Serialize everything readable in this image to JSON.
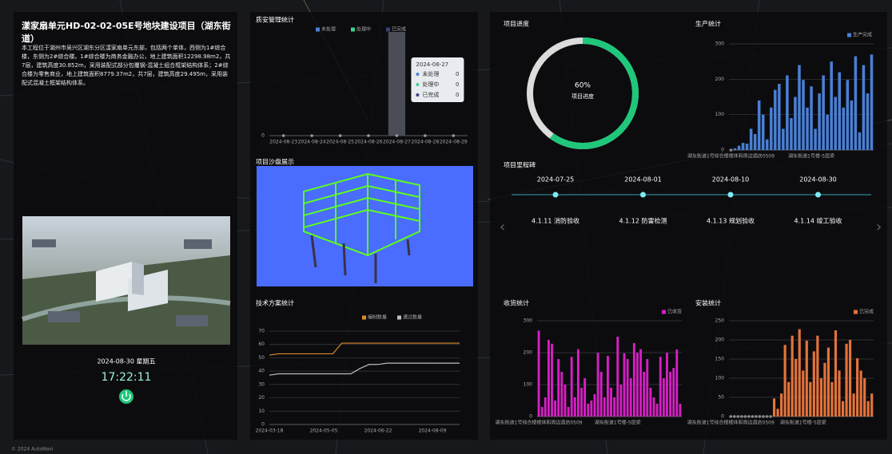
{
  "project": {
    "title": "漾家扇单元HD-02-02-05E号地块建设项目（湖东街道）",
    "description": "本工程位于湖州市吴兴区湖东分区漾家扇单元东部，包括两个单体，西侧为1#综合楼，东侧为2#综合楼。1#综合楼为商务金融办公，地上建筑面积12298.98m2，共7层，建筑高度30.852m，采用装配式部分包覆钢-混凝土组合框架结构体系；2#综合楼为零售商业，地上建筑面积8779.37m2，共7层，建筑高度29.495m，采用装配式混凝土框架结构体系。",
    "date": "2024-08-30 星期五",
    "time": "17:22:11"
  },
  "sandbox": {
    "title": "项目沙盘展示"
  },
  "milestones": {
    "title": "项目里程碑",
    "items": [
      {
        "date": "2024-07-25",
        "label": "4.1.11 消防验收"
      },
      {
        "date": "2024-08-01",
        "label": "4.1.12 防雷检测"
      },
      {
        "date": "2024-08-10",
        "label": "4.1.13 规划验收"
      },
      {
        "date": "2024-08-30",
        "label": "4.1.14 竣工验收"
      }
    ]
  },
  "footer": "© 2024 AutoNavi",
  "chart_data": [
    {
      "type": "bar",
      "title": "质安管理统计",
      "categories": [
        "2024-08-23",
        "2024-08-24",
        "2024-08-25",
        "2024-08-26",
        "2024-08-27",
        "2024-08-28",
        "2024-08-29"
      ],
      "series": [
        {
          "name": "未处理",
          "color": "#4a7fd4",
          "values": [
            0,
            0,
            0,
            0,
            0,
            0,
            0
          ]
        },
        {
          "name": "处理中",
          "color": "#3ecf8e",
          "values": [
            0,
            0,
            0,
            0,
            0,
            0,
            0
          ]
        },
        {
          "name": "已完成",
          "color": "#3b3f7a",
          "values": [
            0,
            0,
            0,
            0,
            0,
            0,
            0
          ]
        }
      ],
      "ylim": [
        0,
        1
      ],
      "yticks": [
        0
      ],
      "highlight_index": 4
    },
    {
      "type": "line",
      "title": "技术方案统计",
      "categories": [
        "2024-03-18",
        null,
        null,
        null,
        null,
        null,
        "2024-05-05",
        null,
        null,
        null,
        null,
        null,
        "2024-06-22",
        null,
        null,
        null,
        null,
        null,
        "2024-08-09",
        null,
        null,
        null
      ],
      "series": [
        {
          "name": "编制数量",
          "color": "#d98b2b",
          "values": [
            52,
            53,
            53,
            53,
            53,
            53,
            53,
            53,
            61,
            61,
            61,
            61,
            61,
            61,
            61,
            61,
            61,
            61,
            61,
            61,
            61,
            61
          ]
        },
        {
          "name": "通过数量",
          "color": "#bdbdbd",
          "values": [
            37,
            38,
            38,
            38,
            38,
            38,
            38,
            38,
            38,
            38,
            42,
            45,
            45,
            46,
            46,
            46,
            46,
            46,
            46,
            46,
            46,
            46
          ]
        }
      ],
      "ylim": [
        0,
        70
      ],
      "yticks": [
        0,
        10,
        20,
        30,
        40,
        50,
        60,
        70
      ]
    },
    {
      "type": "gauge",
      "title": "项目进度",
      "value": 60,
      "value_label": "60%",
      "label": "项目进度",
      "color": "#1ec77a",
      "track": "#dcdcdc"
    },
    {
      "type": "bar",
      "title": "生产统计",
      "categories": [
        "湖东街道1号综合楼楼体和周边酒店0509",
        null,
        null,
        null,
        null,
        null,
        null,
        null,
        null,
        null,
        null,
        null,
        null,
        null,
        null,
        null,
        null,
        null,
        null,
        null,
        "湖东街道1号楼-5层梁",
        null,
        null,
        null,
        null,
        null,
        null,
        null,
        null,
        null,
        null,
        null,
        null,
        null,
        null,
        null
      ],
      "series": [
        {
          "name": "生产完成",
          "color": "#4a7fd4",
          "values": [
            0,
            5,
            12,
            20,
            18,
            60,
            45,
            140,
            100,
            30,
            120,
            170,
            187,
            60,
            211,
            90,
            150,
            240,
            198,
            120,
            180,
            60,
            160,
            211,
            100,
            250,
            150,
            220,
            120,
            198,
            140,
            265,
            50,
            240,
            160,
            270
          ]
        }
      ],
      "ylim": [
        0,
        300
      ],
      "yticks": [
        0,
        100,
        200,
        300
      ]
    },
    {
      "type": "bar",
      "title": "收货统计",
      "categories": [
        "湖东街道1号综合楼楼体和周边酒店0509",
        null,
        null,
        null,
        null,
        null,
        null,
        null,
        null,
        null,
        null,
        null,
        null,
        null,
        null,
        null,
        null,
        null,
        null,
        null,
        null,
        null,
        null,
        null,
        "湖东街道1号楼-5层梁",
        null,
        null,
        null,
        null,
        null,
        null,
        null,
        null,
        null,
        null,
        null,
        null,
        null,
        null,
        null,
        null,
        null,
        null,
        null
      ],
      "series": [
        {
          "name": "已收货",
          "color": "#d61fc4",
          "values": [
            269,
            30,
            60,
            240,
            228,
            50,
            180,
            140,
            100,
            30,
            187,
            60,
            211,
            90,
            120,
            40,
            50,
            70,
            200,
            140,
            60,
            190,
            90,
            60,
            250,
            100,
            198,
            180,
            120,
            230,
            200,
            211,
            140,
            180,
            90,
            60,
            40,
            187,
            120,
            200,
            140,
            152,
            210,
            40
          ]
        }
      ],
      "ylim": [
        0,
        300
      ],
      "yticks": [
        0,
        100,
        200,
        300
      ]
    },
    {
      "type": "bar",
      "title": "安装统计",
      "categories": [
        "湖东街道1号综合楼楼体和周边酒店0509",
        null,
        null,
        null,
        null,
        null,
        null,
        null,
        null,
        null,
        null,
        null,
        null,
        null,
        null,
        null,
        null,
        null,
        null,
        null,
        "湖东街道1号楼-5层梁",
        null,
        null,
        null,
        null,
        null,
        null,
        null,
        null,
        null,
        null,
        null,
        null,
        null,
        null,
        null,
        null,
        null,
        null,
        null
      ],
      "series": [
        {
          "name": "已完成",
          "color": "#e4733a",
          "values": [
            0,
            0,
            0,
            0,
            0,
            0,
            0,
            0,
            0,
            0,
            0,
            0,
            47,
            20,
            60,
            187,
            90,
            211,
            150,
            228,
            120,
            198,
            90,
            170,
            211,
            100,
            140,
            180,
            90,
            225,
            120,
            40,
            190,
            200,
            60,
            152,
            120,
            100,
            40,
            60
          ]
        }
      ],
      "ylim": [
        0,
        250
      ],
      "yticks": [
        0,
        50,
        100,
        150,
        200,
        250
      ]
    }
  ]
}
